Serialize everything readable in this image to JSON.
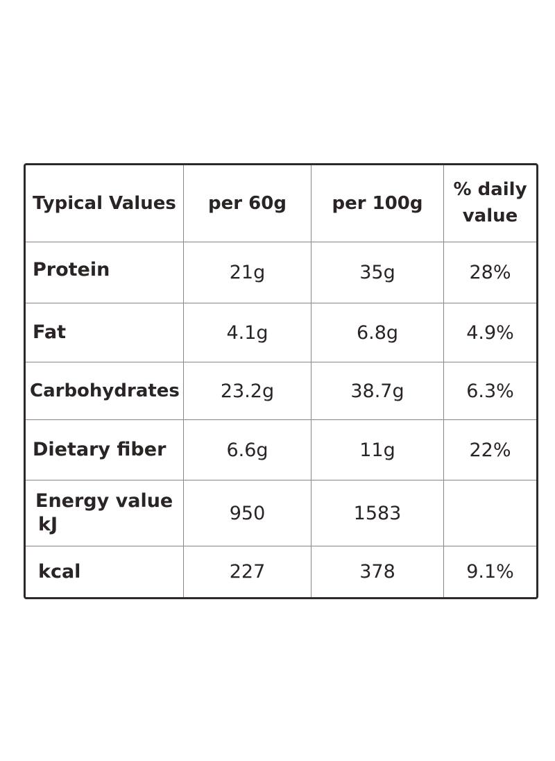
{
  "table": {
    "headers": {
      "label": "Typical Values",
      "per_60": "per 60g",
      "per_100": "per 100g",
      "daily_line1": "% daily",
      "daily_line2": "value"
    },
    "rows": [
      {
        "label": "Protein",
        "per_60": "21g",
        "per_100": "35g",
        "daily": "28%"
      },
      {
        "label": "Fat",
        "per_60": "4.1g",
        "per_100": "6.8g",
        "daily": "4.9%"
      },
      {
        "label": "Carbohydrates",
        "per_60": "23.2g",
        "per_100": "38.7g",
        "daily": "6.3%"
      },
      {
        "label": "Dietary fiber",
        "per_60": "6.6g",
        "per_100": "11g",
        "daily": "22%"
      },
      {
        "label": "Energy value",
        "label_unit": "kJ",
        "per_60": "950",
        "per_100": "1583",
        "daily": ""
      },
      {
        "label": "kcal",
        "per_60": "227",
        "per_100": "378",
        "daily": "9.1%"
      }
    ]
  }
}
